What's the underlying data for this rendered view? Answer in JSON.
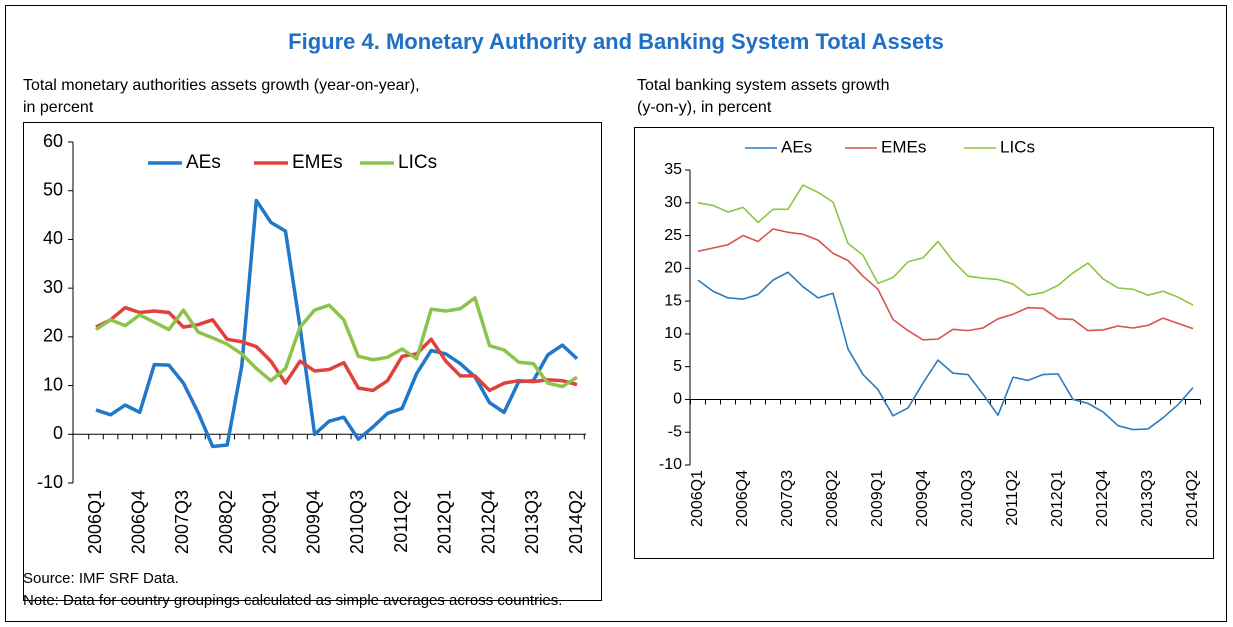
{
  "figure_title": "Figure 4. Monetary Authority and Banking System Total Assets",
  "source": "Source: IMF SRF Data.",
  "note": "Note: Data for country groupings calculated as simple averages across countries.",
  "chart_data": [
    {
      "type": "line",
      "title": [
        "Total monetary authorities assets growth (year-on-year),",
        "in percent"
      ],
      "categories": [
        "2006Q1",
        null,
        null,
        "2006Q4",
        null,
        null,
        "2007Q3",
        null,
        null,
        "2008Q2",
        null,
        null,
        "2009Q1",
        null,
        null,
        "2009Q4",
        null,
        null,
        "2010Q3",
        null,
        null,
        "2011Q2",
        null,
        null,
        "2012Q1",
        null,
        null,
        "2012Q4",
        null,
        null,
        "2013Q3",
        null,
        null,
        "2014Q2"
      ],
      "ylim": [
        -10,
        60
      ],
      "yticks": [
        -10,
        0,
        10,
        20,
        30,
        40,
        50,
        60
      ],
      "legend": "top",
      "series": [
        {
          "name": "AEs",
          "color": "#1f78c8",
          "values": [
            5,
            4,
            6,
            4.5,
            14.3,
            14.2,
            10.5,
            4.5,
            -2.5,
            -2.2,
            14,
            48,
            43.5,
            41.7,
            22,
            0,
            2.7,
            3.5,
            -1,
            1.5,
            4.3,
            5.3,
            12.5,
            17.2,
            16.5,
            14.5,
            11.8,
            6.5,
            4.5,
            10.8,
            11,
            16.3,
            18.3,
            15.5
          ]
        },
        {
          "name": "EMEs",
          "color": "#e0413a",
          "values": [
            22,
            23.5,
            26,
            25,
            25.3,
            25,
            22,
            22.5,
            23.5,
            19.5,
            19,
            18,
            15,
            10.5,
            15,
            13,
            13.3,
            14.7,
            9.5,
            9,
            11,
            16,
            16.5,
            19.5,
            15,
            12,
            12,
            9,
            10.5,
            11,
            10.8,
            11.2,
            11,
            10.2
          ]
        },
        {
          "name": "LICs",
          "color": "#8cc34a",
          "values": [
            21.5,
            23.5,
            22.3,
            24.5,
            23,
            21.5,
            25.5,
            21,
            19.8,
            18.5,
            16.5,
            13.5,
            11,
            13.5,
            22,
            25.5,
            26.5,
            23.5,
            16,
            15.3,
            15.8,
            17.5,
            15.5,
            25.7,
            25.3,
            25.8,
            28,
            18.2,
            17.3,
            14.8,
            14.5,
            10.5,
            9.8,
            11.7
          ]
        }
      ]
    },
    {
      "type": "line",
      "title": [
        "Total banking system assets growth",
        "(y-on-y), in percent"
      ],
      "categories": [
        "2006Q1",
        null,
        null,
        "2006Q4",
        null,
        null,
        "2007Q3",
        null,
        null,
        "2008Q2",
        null,
        null,
        "2009Q1",
        null,
        null,
        "2009Q4",
        null,
        null,
        "2010Q3",
        null,
        null,
        "2011Q2",
        null,
        null,
        "2012Q1",
        null,
        null,
        "2012Q4",
        null,
        null,
        "2013Q3",
        null,
        null,
        "2014Q2"
      ],
      "ylim": [
        -10,
        35
      ],
      "yticks": [
        -10,
        -5,
        0,
        5,
        10,
        15,
        20,
        25,
        30,
        35
      ],
      "legend": "top",
      "series": [
        {
          "name": "AEs",
          "color": "#2c7bc0",
          "values": [
            18.2,
            16.5,
            15.5,
            15.3,
            16,
            18.2,
            19.4,
            17.2,
            15.5,
            16.2,
            7.7,
            3.8,
            1.5,
            -2.5,
            -1.3,
            2.5,
            6,
            4,
            3.8,
            0.8,
            -2.4,
            3.4,
            2.9,
            3.8,
            3.9,
            0,
            -0.6,
            -1.9,
            -4,
            -4.6,
            -4.5,
            -2.8,
            -0.8,
            1.8
          ]
        },
        {
          "name": "EMEs",
          "color": "#d9534f",
          "values": [
            22.6,
            23.1,
            23.6,
            25,
            24.1,
            26,
            25.5,
            25.2,
            24.3,
            22.3,
            21.2,
            18.8,
            16.8,
            12.2,
            10.5,
            9.1,
            9.2,
            10.7,
            10.5,
            10.9,
            12.3,
            13,
            14,
            13.9,
            12.3,
            12.2,
            10.5,
            10.6,
            11.2,
            10.9,
            11.3,
            12.4,
            11.6,
            10.8
          ]
        },
        {
          "name": "LICs",
          "color": "#8dc63f",
          "values": [
            30,
            29.6,
            28.6,
            29.3,
            27,
            29,
            29,
            32.7,
            31.6,
            30.1,
            23.8,
            22,
            17.7,
            18.6,
            21,
            21.6,
            24.1,
            21.1,
            18.8,
            18.5,
            18.3,
            17.6,
            15.9,
            16.3,
            17.4,
            19.3,
            20.8,
            18.4,
            17,
            16.8,
            15.9,
            16.5,
            15.6,
            14.4
          ]
        }
      ]
    }
  ]
}
